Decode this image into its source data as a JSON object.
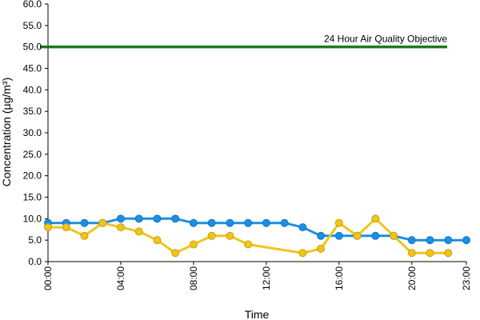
{
  "chart_data": {
    "type": "line",
    "xlabel": "Time",
    "ylabel": "Concentration (µg/m³)",
    "x_ticks": [
      "00:00",
      "04:00",
      "08:00",
      "12:00",
      "16:00",
      "20:00",
      "23:00"
    ],
    "x_tick_hours": [
      0,
      4,
      8,
      12,
      16,
      20,
      23
    ],
    "xlim_hours": [
      0,
      23
    ],
    "ylim": [
      0,
      60
    ],
    "y_ticks": [
      "0.0",
      "5.0",
      "10.0",
      "15.0",
      "20.0",
      "25.0",
      "30.0",
      "35.0",
      "40.0",
      "45.0",
      "50.0",
      "55.0",
      "60.0"
    ],
    "grid": false,
    "objective": {
      "label": "24 Hour Air Quality Objective",
      "value": 50,
      "color": "#1e7a1e"
    },
    "series": [
      {
        "color": "#1a8fe3",
        "points": [
          [
            0,
            9
          ],
          [
            1,
            9
          ],
          [
            2,
            9
          ],
          [
            3,
            9
          ],
          [
            4,
            10
          ],
          [
            5,
            10
          ],
          [
            6,
            10
          ],
          [
            7,
            10
          ],
          [
            8,
            9
          ],
          [
            9,
            9
          ],
          [
            10,
            9
          ],
          [
            11,
            9
          ],
          [
            12,
            9
          ],
          [
            13,
            9
          ],
          [
            14,
            8
          ],
          [
            15,
            6
          ],
          [
            16,
            6
          ],
          [
            17,
            6
          ],
          [
            18,
            6
          ],
          [
            19,
            6
          ],
          [
            20,
            5
          ],
          [
            21,
            5
          ],
          [
            22,
            5
          ],
          [
            23,
            5
          ]
        ]
      },
      {
        "color": "#f0c419",
        "points": [
          [
            0,
            8
          ],
          [
            1,
            8
          ],
          [
            2,
            6
          ],
          [
            3,
            9
          ],
          [
            4,
            8
          ],
          [
            5,
            7
          ],
          [
            6,
            5
          ],
          [
            7,
            2
          ],
          [
            8,
            4
          ],
          [
            9,
            6
          ],
          [
            10,
            6
          ],
          [
            11,
            4
          ],
          [
            14,
            2
          ],
          [
            15,
            3
          ],
          [
            16,
            9
          ],
          [
            17,
            6
          ],
          [
            18,
            10
          ],
          [
            19,
            6
          ],
          [
            20,
            2
          ],
          [
            21,
            2
          ],
          [
            22,
            2
          ]
        ]
      }
    ]
  }
}
